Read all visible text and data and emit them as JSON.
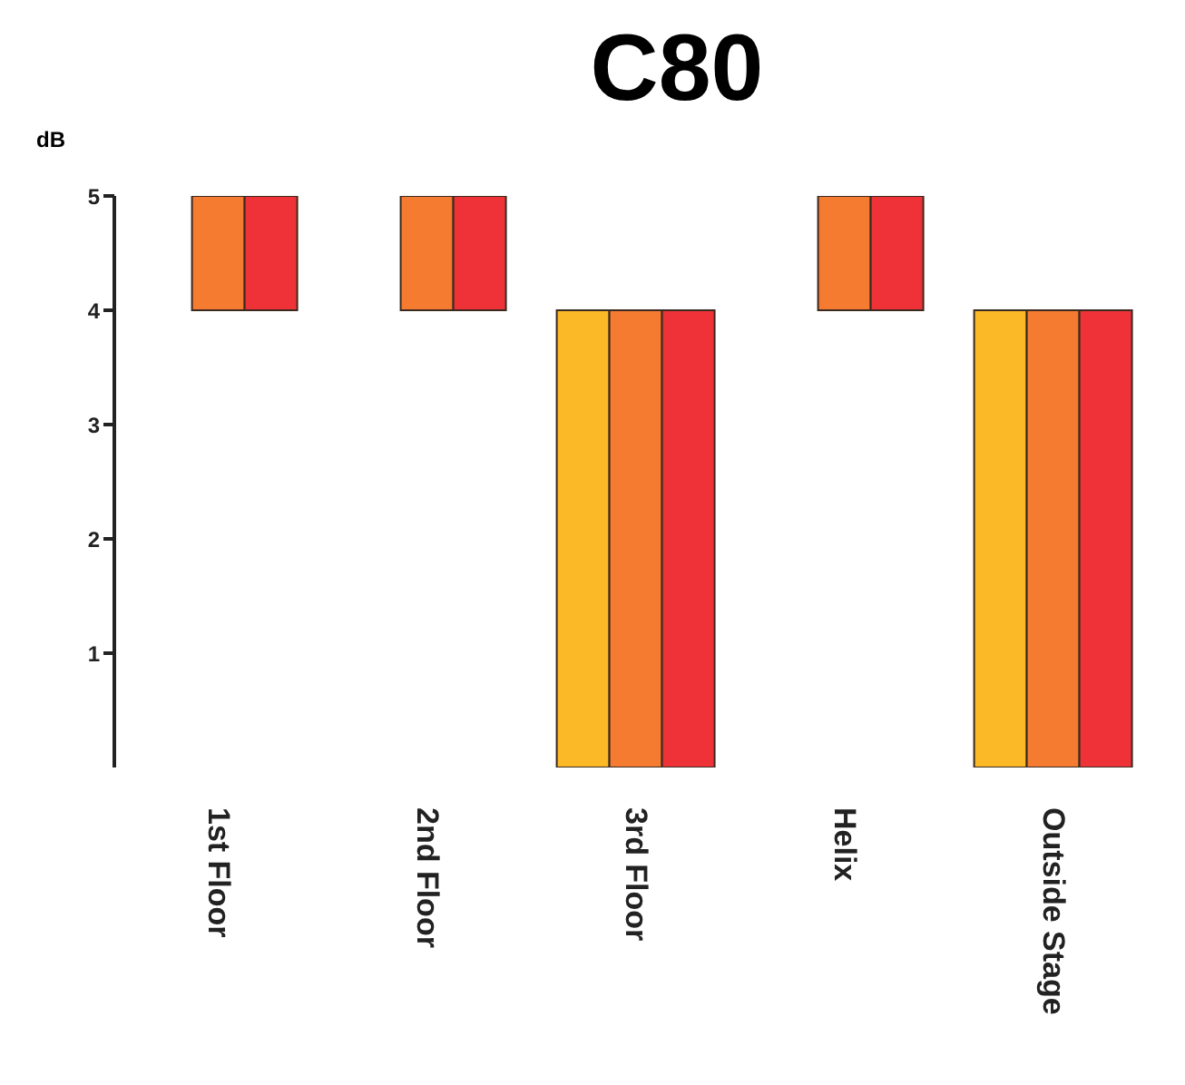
{
  "chart_data": {
    "type": "bar",
    "title": "C80",
    "ylabel": "dB",
    "categories": [
      "1st Floor",
      "2nd Floor",
      "3rd Floor",
      "Helix",
      "Outside Stage"
    ],
    "series": [
      {
        "color": "#fbb928",
        "values": [
          0,
          0,
          4,
          0,
          4
        ]
      },
      {
        "color": "#f47b30",
        "values": [
          1,
          1,
          4,
          1,
          4
        ],
        "base": [
          4,
          4,
          0,
          4,
          0
        ]
      },
      {
        "color": "#ee3237",
        "values": [
          1,
          1,
          4,
          1,
          4
        ],
        "base": [
          4,
          4,
          0,
          4,
          0
        ]
      }
    ],
    "ylim": [
      0,
      5
    ],
    "yticks": [
      1,
      2,
      3,
      4,
      5
    ],
    "grid": false,
    "legend": false
  }
}
